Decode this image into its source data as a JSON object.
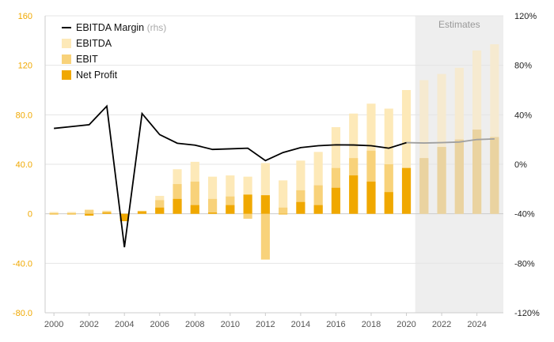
{
  "chart_data": {
    "type": "bar",
    "x": [
      2000,
      2001,
      2002,
      2003,
      2004,
      2005,
      2006,
      2007,
      2008,
      2009,
      2010,
      2011,
      2012,
      2013,
      2014,
      2015,
      2016,
      2017,
      2018,
      2019,
      2020,
      2021,
      2022,
      2023,
      2024,
      2025
    ],
    "estimates_label": "Estimates",
    "estimates_from": 2020.5,
    "estimates_to": 2025.5,
    "left_axis": {
      "ticks": [
        -80,
        -40,
        0,
        40,
        80,
        120,
        160
      ],
      "tick_labels": [
        "-80.0",
        "-40.0",
        "0",
        "40.0",
        "80.0",
        "120",
        "160"
      ],
      "range": [
        -80,
        160
      ],
      "color": "#f0a800"
    },
    "right_axis": {
      "ticks": [
        -120,
        -80,
        -40,
        0,
        40,
        80,
        120
      ],
      "tick_labels": [
        "-120%",
        "-80%",
        "-40%",
        "0%",
        "40%",
        "80%",
        "120%"
      ],
      "range": [
        -120,
        120
      ]
    },
    "x_tick_labels": [
      "2000",
      "2002",
      "2004",
      "2006",
      "2008",
      "2010",
      "2012",
      "2014",
      "2016",
      "2018",
      "2020",
      "2022",
      "2024"
    ],
    "legend": [
      {
        "name": "EBITDA Margin",
        "suffix": "(rhs)",
        "type": "line",
        "color": "#000000"
      },
      {
        "name": "EBITDA",
        "type": "bar",
        "color": "#fde9b8"
      },
      {
        "name": "EBIT",
        "type": "bar",
        "color": "#f8d27a"
      },
      {
        "name": "Net Profit",
        "type": "bar",
        "color": "#f0a800"
      }
    ],
    "series": [
      {
        "name": "EBITDA",
        "values": [
          1.5,
          1.5,
          3.5,
          2.5,
          -3,
          2.5,
          14.5,
          36,
          42,
          30,
          31,
          30,
          41,
          27,
          43,
          50,
          70,
          81,
          89,
          85,
          100,
          108,
          113,
          118,
          132,
          137
        ]
      },
      {
        "name": "EBIT",
        "values": [
          0.5,
          0.5,
          3,
          2,
          -5,
          2,
          11,
          24,
          26,
          12,
          14,
          -4,
          -37,
          5,
          19,
          23,
          37,
          45,
          51,
          40,
          37,
          45,
          54,
          60,
          68,
          62
        ]
      },
      {
        "name": "Net Profit",
        "values": [
          -0.5,
          -0.5,
          -1.5,
          1,
          -6,
          2,
          5,
          12,
          7,
          1,
          7,
          15.5,
          15,
          -0.5,
          9.5,
          7,
          21,
          31,
          26,
          17.5,
          37,
          45,
          54,
          60,
          68,
          62
        ]
      },
      {
        "name": "EBITDA Margin",
        "axis": "right",
        "values": [
          29,
          30.5,
          32,
          47,
          -67,
          41,
          24,
          17,
          15.5,
          12,
          12.5,
          13,
          3,
          9.5,
          13.5,
          15,
          15.7,
          15.6,
          15,
          13,
          17.5,
          17.2,
          17.5,
          18,
          20,
          20.5
        ]
      }
    ]
  }
}
